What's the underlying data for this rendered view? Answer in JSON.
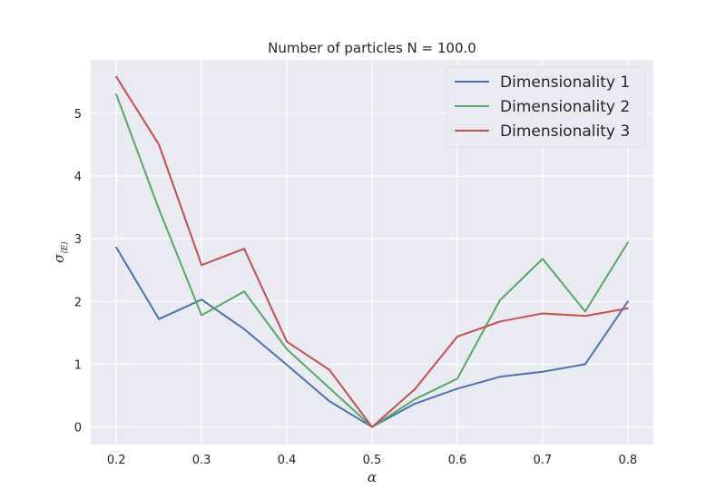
{
  "chart_data": {
    "type": "line",
    "title": "Number of particles N = 100.0",
    "xlabel": "α",
    "ylabel": "σ",
    "ylabel_subscript": "⟨E⟩",
    "xlim": [
      0.17,
      0.83
    ],
    "ylim": [
      -0.28,
      5.85
    ],
    "x": [
      0.2,
      0.25,
      0.3,
      0.35,
      0.4,
      0.45,
      0.5,
      0.55,
      0.6,
      0.65,
      0.7,
      0.75,
      0.8
    ],
    "x_ticks": [
      0.2,
      0.3,
      0.4,
      0.5,
      0.6,
      0.7,
      0.8
    ],
    "x_tick_labels": [
      "0.2",
      "0.3",
      "0.4",
      "0.5",
      "0.6",
      "0.7",
      "0.8"
    ],
    "y_ticks": [
      0,
      1,
      2,
      3,
      4,
      5
    ],
    "y_tick_labels": [
      "0",
      "1",
      "2",
      "3",
      "4",
      "5"
    ],
    "grid": true,
    "legend_position": "top-right",
    "series": [
      {
        "name": "Dimensionality 1",
        "color": "#4c72b0",
        "values": [
          2.86,
          1.72,
          2.03,
          1.56,
          0.99,
          0.41,
          0.0,
          0.37,
          0.61,
          0.8,
          0.88,
          1.0,
          2.0
        ]
      },
      {
        "name": "Dimensionality 2",
        "color": "#55a868",
        "values": [
          5.3,
          3.47,
          1.78,
          2.16,
          1.24,
          0.62,
          0.0,
          0.44,
          0.77,
          2.02,
          2.68,
          1.84,
          2.94
        ]
      },
      {
        "name": "Dimensionality 3",
        "color": "#c44e52",
        "values": [
          5.58,
          4.5,
          2.58,
          2.84,
          1.36,
          0.91,
          0.0,
          0.6,
          1.44,
          1.68,
          1.81,
          1.77,
          1.89
        ]
      }
    ]
  }
}
